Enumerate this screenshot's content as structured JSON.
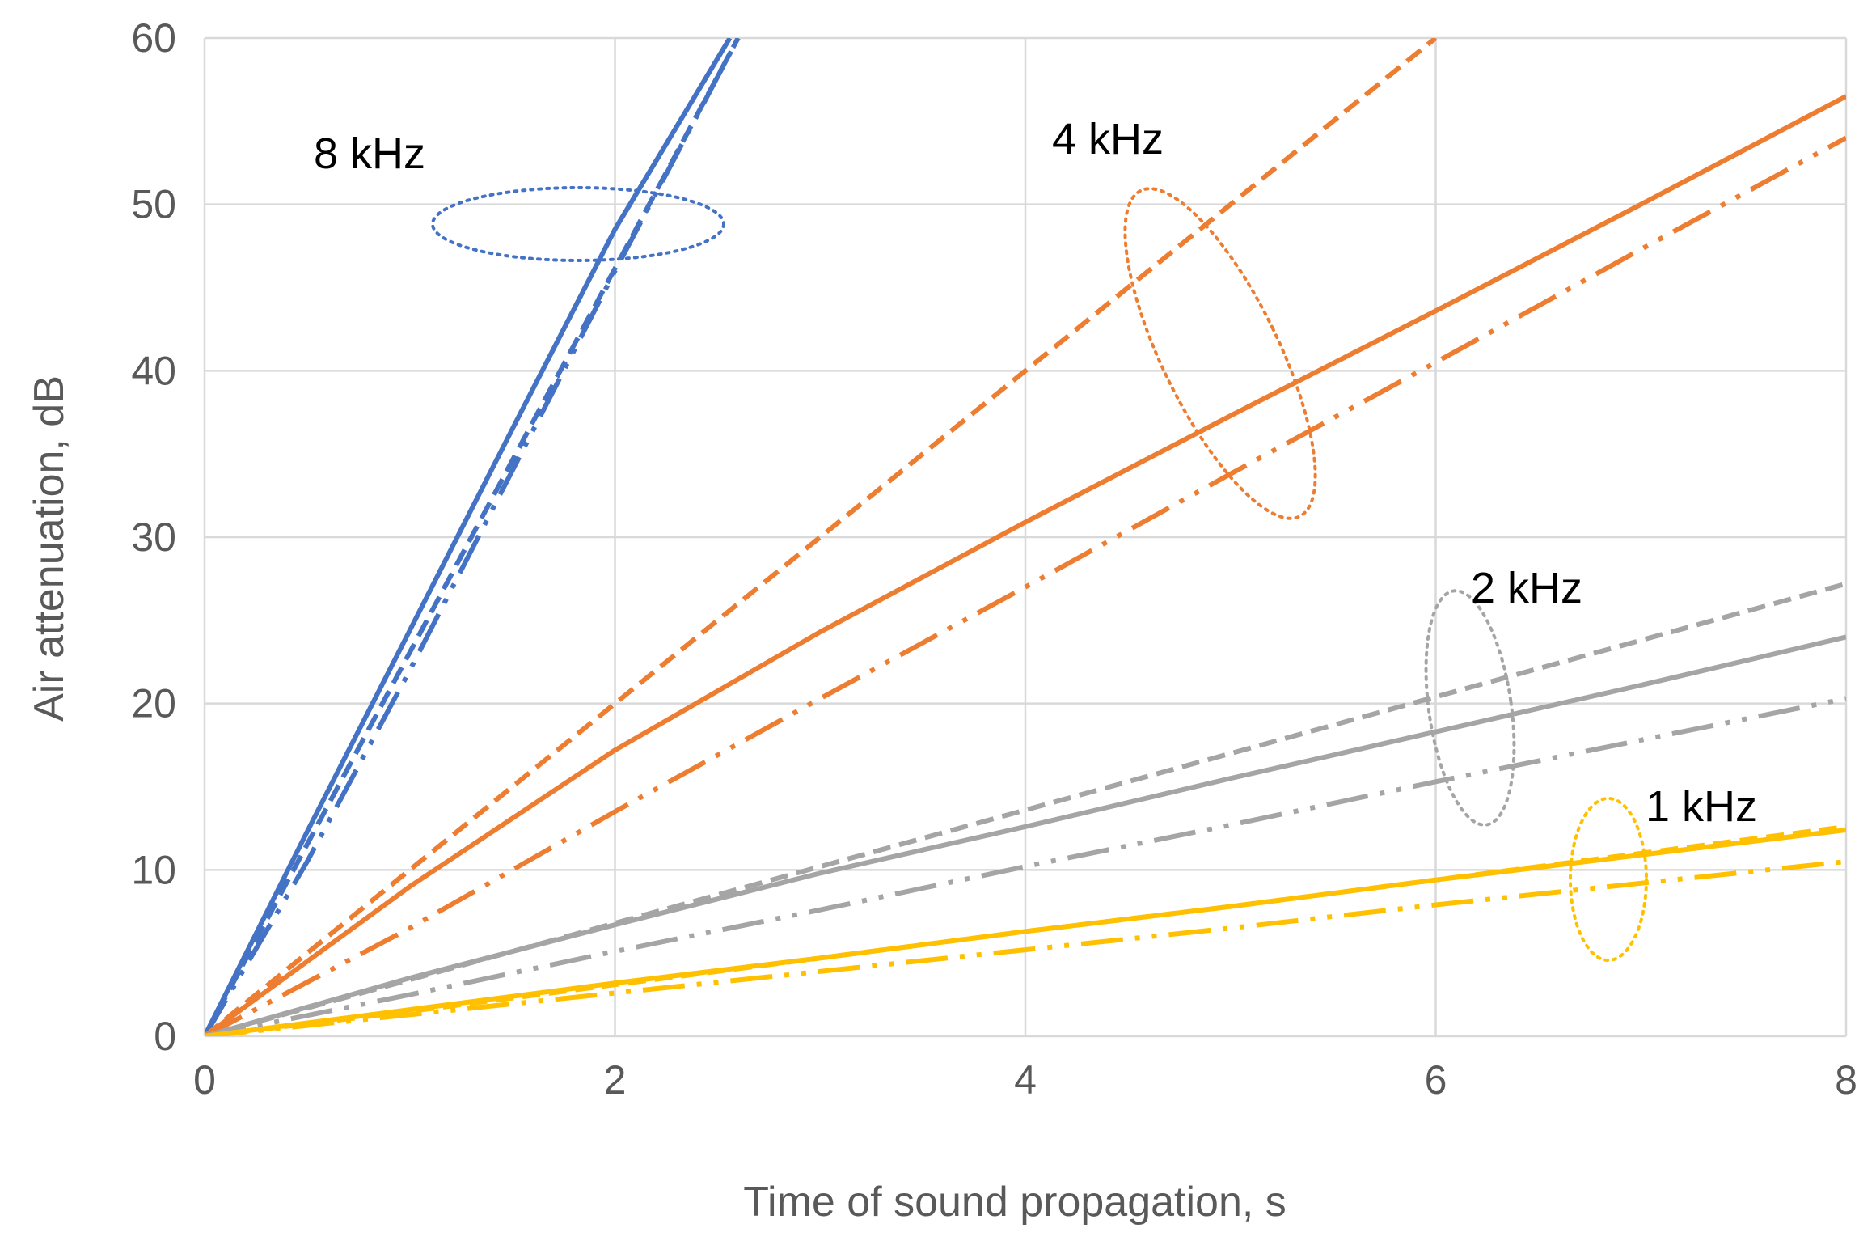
{
  "chart_data": {
    "type": "line",
    "title": "",
    "xlabel": "Time of sound propagation, s",
    "ylabel": "Air attenuation, dB",
    "xlim": [
      0,
      8
    ],
    "ylim": [
      0,
      60
    ],
    "xticks": [
      0,
      2,
      4,
      6,
      8
    ],
    "yticks": [
      0,
      10,
      20,
      30,
      40,
      50,
      60
    ],
    "grid": true,
    "legend": "none",
    "groups": [
      {
        "label": "8 kHz",
        "color": "#4472C4",
        "series": [
          {
            "style": "dashed",
            "x": [
              0,
              2.6
            ],
            "y": [
              0,
              60
            ]
          },
          {
            "style": "solid",
            "x": [
              0,
              0.5,
              1,
              1.5,
              2,
              2.56
            ],
            "y": [
              0,
              12.3,
              24.4,
              36.5,
              48.5,
              60
            ]
          },
          {
            "style": "dash-dot-dot",
            "x": [
              0,
              0.5,
              1,
              1.5,
              2,
              2.6
            ],
            "y": [
              0,
              10.5,
              22,
              34,
              46,
              60
            ]
          }
        ]
      },
      {
        "label": "4 kHz",
        "color": "#ED7D31",
        "series": [
          {
            "style": "dashed",
            "x": [
              0,
              1,
              2,
              3,
              4,
              5,
              6
            ],
            "y": [
              0,
              10,
              20,
              30,
              40,
              50,
              60
            ]
          },
          {
            "style": "solid",
            "x": [
              0,
              1,
              2,
              3,
              4,
              5,
              6,
              7,
              8
            ],
            "y": [
              0,
              9,
              17.2,
              24.3,
              30.9,
              37.3,
              43.6,
              50,
              56.5
            ]
          },
          {
            "style": "dash-dot-dot",
            "x": [
              0,
              1,
              2,
              3,
              4,
              5,
              6,
              7,
              8
            ],
            "y": [
              0,
              6.5,
              13.5,
              20.3,
              27,
              33.8,
              40.5,
              47.3,
              54
            ]
          }
        ]
      },
      {
        "label": "2 kHz",
        "color": "#A5A5A5",
        "series": [
          {
            "style": "dashed",
            "x": [
              0,
              1,
              2,
              3,
              4,
              5,
              6,
              7,
              8
            ],
            "y": [
              0,
              3.4,
              6.8,
              10.2,
              13.6,
              17,
              20.4,
              23.8,
              27.2
            ]
          },
          {
            "style": "solid",
            "x": [
              0,
              1,
              2,
              3,
              4,
              5,
              6,
              7,
              8
            ],
            "y": [
              0,
              3.5,
              6.7,
              9.8,
              12.6,
              15.5,
              18.3,
              21.1,
              24
            ]
          },
          {
            "style": "dash-dot-dot",
            "x": [
              0,
              1,
              2,
              3,
              4,
              5,
              6,
              7,
              8
            ],
            "y": [
              0,
              2.5,
              5.1,
              7.6,
              10.2,
              12.7,
              15.3,
              17.8,
              20.3
            ]
          }
        ]
      },
      {
        "label": "1 kHz",
        "color": "#FFC000",
        "series": [
          {
            "style": "dashed",
            "x": [
              0,
              1,
              2,
              3,
              4,
              5,
              6,
              7,
              8
            ],
            "y": [
              0,
              1.5,
              3.1,
              4.7,
              6.3,
              7.8,
              9.4,
              11,
              12.6
            ]
          },
          {
            "style": "solid",
            "x": [
              0,
              1,
              2,
              3,
              4,
              5,
              6,
              7,
              8
            ],
            "y": [
              0,
              1.6,
              3.2,
              4.7,
              6.3,
              7.8,
              9.4,
              10.9,
              12.4
            ]
          },
          {
            "style": "dash-dot-dot",
            "x": [
              0,
              1,
              2,
              3,
              4,
              5,
              6,
              7,
              8
            ],
            "y": [
              0,
              1.3,
              2.6,
              3.9,
              5.2,
              6.5,
              7.9,
              9.2,
              10.5
            ]
          }
        ]
      }
    ]
  }
}
